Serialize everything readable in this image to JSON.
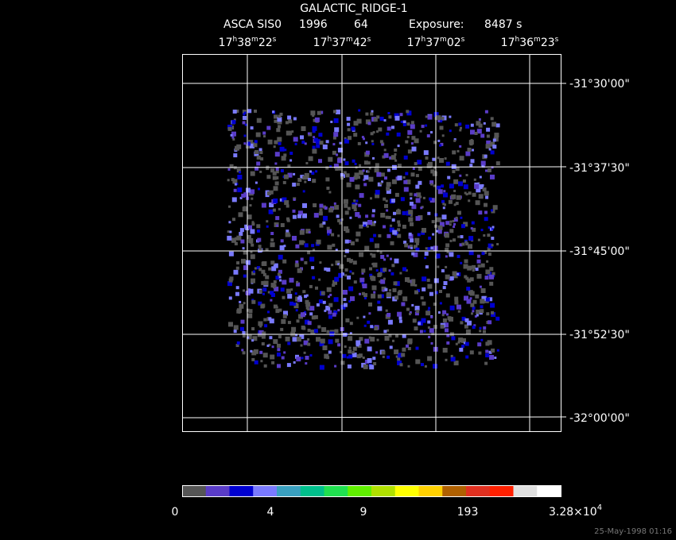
{
  "header": {
    "title": "GALACTIC_RIDGE-1",
    "instrument": "ASCA SIS0",
    "year": "1996",
    "code": "64",
    "exposure_label": "Exposure:",
    "exposure_value": "8487 s"
  },
  "ra_labels": [
    [
      "17",
      "h",
      "38",
      "m",
      "22",
      "s"
    ],
    [
      "17",
      "h",
      "37",
      "m",
      "42",
      "s"
    ],
    [
      "17",
      "h",
      "37",
      "m",
      "02",
      "s"
    ],
    [
      "17",
      "h",
      "36",
      "m",
      "23",
      "s"
    ]
  ],
  "dec_labels": [
    "-31°30'00\"",
    "-31°37'30\"",
    "-31°45'00\"",
    "-31°52'30\"",
    "-32°00'00\""
  ],
  "colorbar": {
    "colors": [
      "#555555",
      "#5a3cc8",
      "#0000d0",
      "#7a7aff",
      "#3aa0c0",
      "#00c08c",
      "#20e050",
      "#60f000",
      "#b0e000",
      "#ffff00",
      "#ffd000",
      "#b06000",
      "#e03020",
      "#ff2000",
      "#e0e0e0",
      "#ffffff"
    ],
    "labels": [
      "0",
      "4",
      "9",
      "193"
    ],
    "max_label": {
      "mantissa": "3.28×10",
      "exponent": "4"
    }
  },
  "timestamp": "25-May-1998 01:16"
}
